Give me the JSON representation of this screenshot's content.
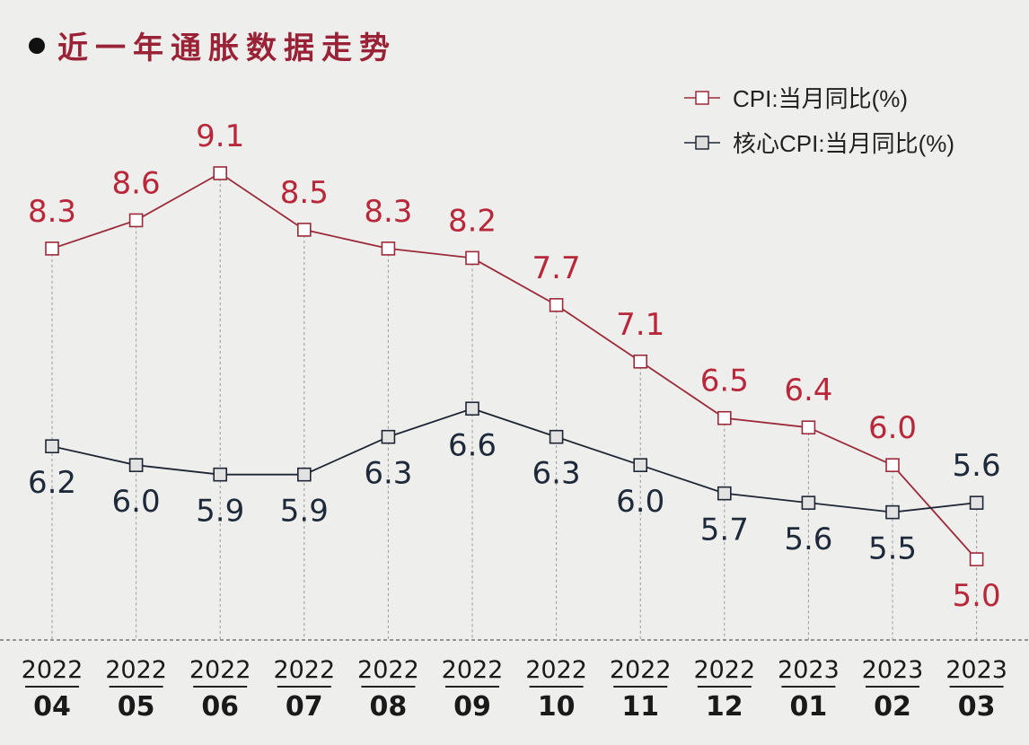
{
  "chart_data": {
    "type": "line",
    "title": "近一年通胀数据走势",
    "categories": [
      {
        "year": "2022",
        "month": "04"
      },
      {
        "year": "2022",
        "month": "05"
      },
      {
        "year": "2022",
        "month": "06"
      },
      {
        "year": "2022",
        "month": "07"
      },
      {
        "year": "2022",
        "month": "08"
      },
      {
        "year": "2022",
        "month": "09"
      },
      {
        "year": "2022",
        "month": "10"
      },
      {
        "year": "2022",
        "month": "11"
      },
      {
        "year": "2022",
        "month": "12"
      },
      {
        "year": "2023",
        "month": "01"
      },
      {
        "year": "2023",
        "month": "02"
      },
      {
        "year": "2023",
        "month": "03"
      }
    ],
    "series": [
      {
        "name": "CPI:当月同比(%)",
        "color": "#9b2a3a",
        "label_color": "#b8283a",
        "values": [
          8.3,
          8.6,
          9.1,
          8.5,
          8.3,
          8.2,
          7.7,
          7.1,
          6.5,
          6.4,
          6.0,
          5.0
        ],
        "labels": [
          "8.3",
          "8.6",
          "9.1",
          "8.5",
          "8.3",
          "8.2",
          "7.7",
          "7.1",
          "6.5",
          "6.4",
          "6.0",
          "5.0"
        ]
      },
      {
        "name": "核心CPI:当月同比(%)",
        "color": "#1e2533",
        "label_color": "#1e2a3a",
        "values": [
          6.2,
          6.0,
          5.9,
          5.9,
          6.3,
          6.6,
          6.3,
          6.0,
          5.7,
          5.6,
          5.5,
          5.6
        ],
        "labels": [
          "6.2",
          "6.0",
          "5.9",
          "5.9",
          "6.3",
          "6.6",
          "6.3",
          "6.0",
          "5.7",
          "5.6",
          "5.5",
          "5.6"
        ]
      }
    ],
    "legend": "top-right",
    "grid": false
  }
}
